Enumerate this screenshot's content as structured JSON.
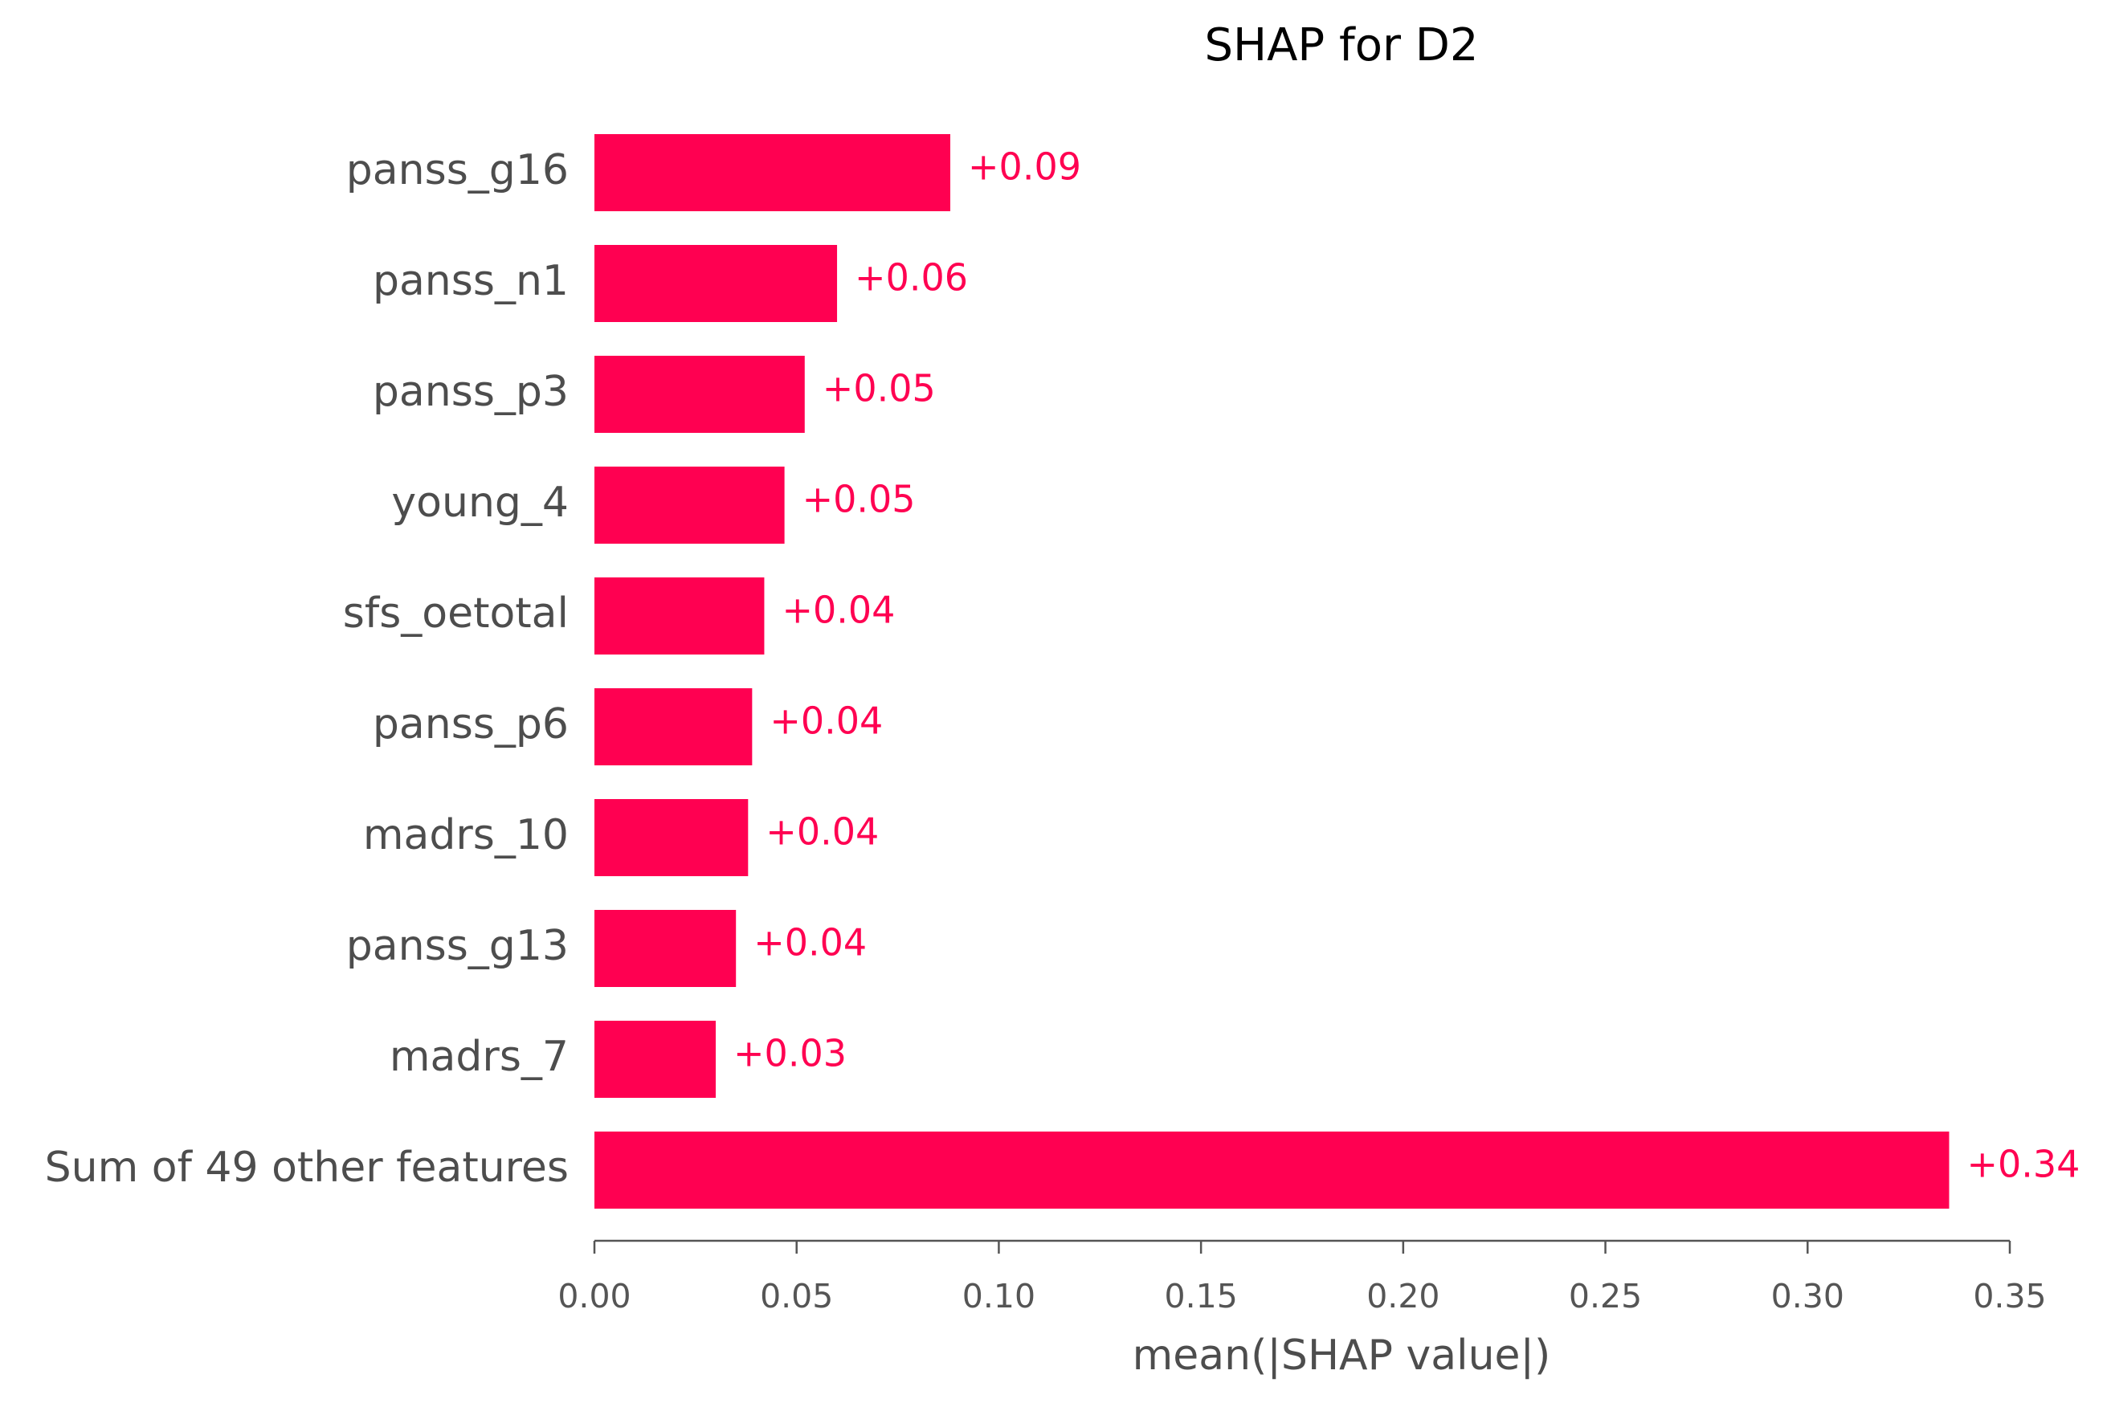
{
  "chart_data": {
    "type": "bar",
    "orientation": "horizontal",
    "title": "SHAP for D2",
    "xlabel": "mean(|SHAP value|)",
    "ylabel": "",
    "xlim": [
      0,
      0.35
    ],
    "xticks": [
      0.0,
      0.05,
      0.1,
      0.15,
      0.2,
      0.25,
      0.3,
      0.35
    ],
    "xtick_labels": [
      "0.00",
      "0.05",
      "0.10",
      "0.15",
      "0.20",
      "0.25",
      "0.30",
      "0.35"
    ],
    "grid": false,
    "bar_color": "#ff0051",
    "categories": [
      "panss_g16",
      "panss_n1",
      "panss_p3",
      "young_4",
      "sfs_oetotal",
      "panss_p6",
      "madrs_10",
      "panss_g13",
      "madrs_7",
      "Sum of 49 other features"
    ],
    "values": [
      0.088,
      0.06,
      0.052,
      0.047,
      0.042,
      0.039,
      0.038,
      0.035,
      0.03,
      0.335
    ],
    "value_labels": [
      "+0.09",
      "+0.06",
      "+0.05",
      "+0.05",
      "+0.04",
      "+0.04",
      "+0.04",
      "+0.04",
      "+0.03",
      "+0.34"
    ]
  }
}
